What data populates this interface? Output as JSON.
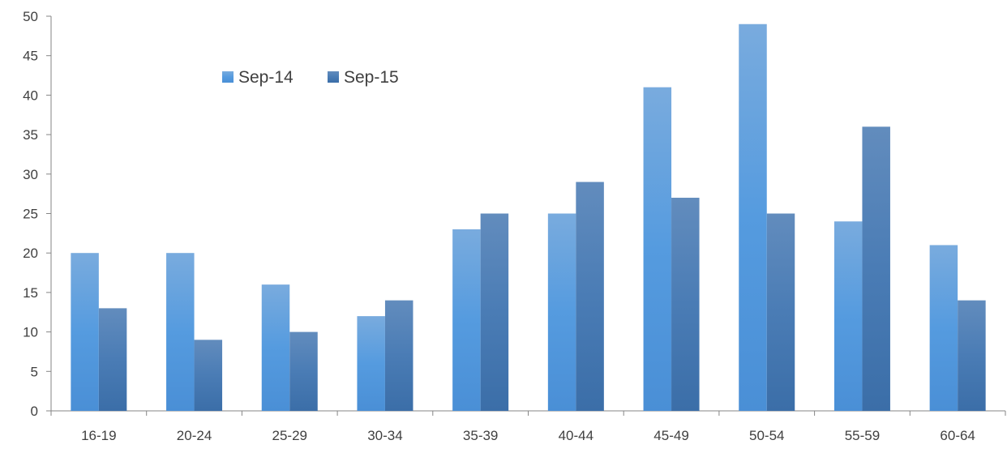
{
  "chart_data": {
    "type": "bar",
    "title": "",
    "xlabel": "",
    "ylabel": "",
    "ylim": [
      0,
      50
    ],
    "ytick_step": 5,
    "grid": false,
    "legend_position": "top-left",
    "categories": [
      "16-19",
      "20-24",
      "25-29",
      "30-34",
      "35-39",
      "40-44",
      "45-49",
      "50-54",
      "55-59",
      "60-64"
    ],
    "series": [
      {
        "name": "Sep-14",
        "color": "#5B9BD5",
        "values": [
          20,
          20,
          16,
          12,
          23,
          25,
          41,
          49,
          24,
          21
        ]
      },
      {
        "name": "Sep-15",
        "color": "#4A7EB5",
        "values": [
          13,
          9,
          10,
          14,
          25,
          29,
          27,
          25,
          36,
          14
        ]
      }
    ]
  }
}
